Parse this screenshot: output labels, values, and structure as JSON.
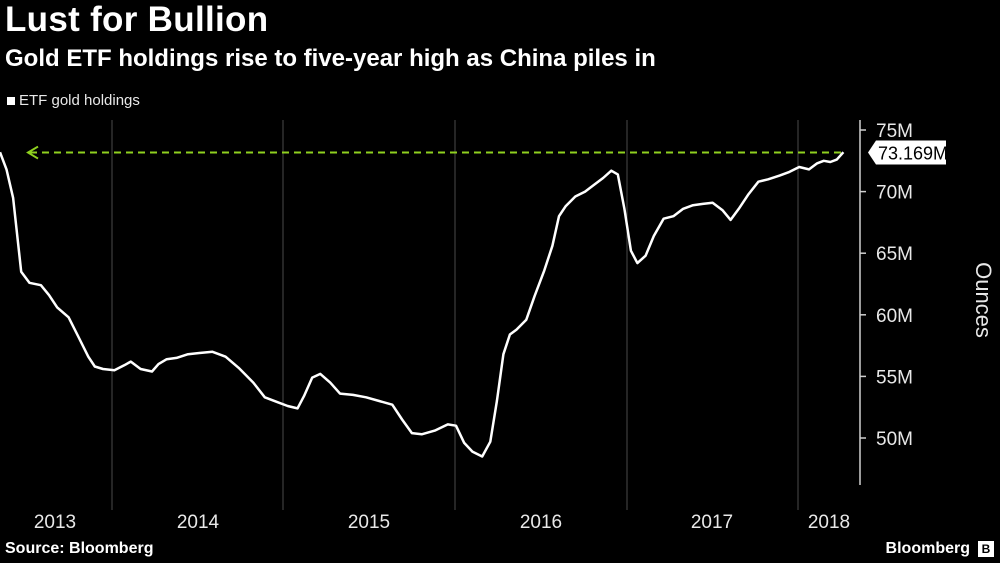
{
  "title": "Lust for Bullion",
  "subtitle": "Gold ETF holdings rise to five-year high as China piles in",
  "legend_label": "ETF gold holdings",
  "source": "Source: Bloomberg",
  "brand": "Bloomberg",
  "colors": {
    "background": "#000000",
    "line": "#ffffff",
    "target_line": "#8fd11f",
    "grid": "#4a4a4a"
  },
  "chart_data": {
    "type": "line",
    "title": "Lust for Bullion",
    "subtitle": "Gold ETF holdings rise to five-year high as China piles in",
    "ylabel": "Ounces",
    "ylim": [
      45.5,
      75
    ],
    "yticks": [
      50,
      55,
      60,
      65,
      70,
      75
    ],
    "ytick_labels": [
      "50M",
      "55M",
      "60M",
      "65M",
      "70M",
      "75M"
    ],
    "x_categories": [
      "2013",
      "2014",
      "2015",
      "2016",
      "2017",
      "2018"
    ],
    "xlim": [
      2013.0,
      2018.17
    ],
    "annotation": {
      "label": "73.169M",
      "value": 73.169
    },
    "series": [
      {
        "name": "ETF gold holdings",
        "points": [
          [
            2013.0,
            73.2
          ],
          [
            2013.04,
            71.8
          ],
          [
            2013.08,
            69.5
          ],
          [
            2013.13,
            63.5
          ],
          [
            2013.18,
            62.6
          ],
          [
            2013.25,
            62.4
          ],
          [
            2013.3,
            61.6
          ],
          [
            2013.35,
            60.6
          ],
          [
            2013.42,
            59.8
          ],
          [
            2013.48,
            58.2
          ],
          [
            2013.54,
            56.6
          ],
          [
            2013.58,
            55.8
          ],
          [
            2013.63,
            55.6
          ],
          [
            2013.7,
            55.5
          ],
          [
            2013.76,
            55.9
          ],
          [
            2013.8,
            56.2
          ],
          [
            2013.86,
            55.6
          ],
          [
            2013.93,
            55.4
          ],
          [
            2013.97,
            56.0
          ],
          [
            2014.02,
            56.4
          ],
          [
            2014.08,
            56.5
          ],
          [
            2014.15,
            56.8
          ],
          [
            2014.22,
            56.9
          ],
          [
            2014.3,
            57.0
          ],
          [
            2014.38,
            56.6
          ],
          [
            2014.46,
            55.7
          ],
          [
            2014.55,
            54.5
          ],
          [
            2014.62,
            53.3
          ],
          [
            2014.7,
            52.9
          ],
          [
            2014.76,
            52.6
          ],
          [
            2014.82,
            52.4
          ],
          [
            2014.86,
            53.4
          ],
          [
            2014.91,
            54.9
          ],
          [
            2014.96,
            55.2
          ],
          [
            2015.02,
            54.5
          ],
          [
            2015.08,
            53.6
          ],
          [
            2015.16,
            53.5
          ],
          [
            2015.24,
            53.3
          ],
          [
            2015.32,
            53.0
          ],
          [
            2015.4,
            52.7
          ],
          [
            2015.46,
            51.5
          ],
          [
            2015.52,
            50.4
          ],
          [
            2015.58,
            50.3
          ],
          [
            2015.66,
            50.6
          ],
          [
            2015.74,
            51.1
          ],
          [
            2015.79,
            51.0
          ],
          [
            2015.84,
            49.6
          ],
          [
            2015.89,
            48.9
          ],
          [
            2015.95,
            48.5
          ],
          [
            2016.0,
            49.7
          ],
          [
            2016.04,
            53.0
          ],
          [
            2016.08,
            56.8
          ],
          [
            2016.12,
            58.4
          ],
          [
            2016.16,
            58.8
          ],
          [
            2016.22,
            59.6
          ],
          [
            2016.27,
            61.5
          ],
          [
            2016.33,
            63.6
          ],
          [
            2016.38,
            65.6
          ],
          [
            2016.42,
            68.0
          ],
          [
            2016.46,
            68.8
          ],
          [
            2016.52,
            69.6
          ],
          [
            2016.58,
            70.0
          ],
          [
            2016.63,
            70.5
          ],
          [
            2016.69,
            71.1
          ],
          [
            2016.74,
            71.7
          ],
          [
            2016.78,
            71.4
          ],
          [
            2016.82,
            68.6
          ],
          [
            2016.86,
            65.2
          ],
          [
            2016.9,
            64.2
          ],
          [
            2016.95,
            64.8
          ],
          [
            2017.0,
            66.4
          ],
          [
            2017.06,
            67.8
          ],
          [
            2017.12,
            68.0
          ],
          [
            2017.18,
            68.6
          ],
          [
            2017.24,
            68.9
          ],
          [
            2017.3,
            69.0
          ],
          [
            2017.36,
            69.1
          ],
          [
            2017.42,
            68.5
          ],
          [
            2017.47,
            67.7
          ],
          [
            2017.52,
            68.6
          ],
          [
            2017.58,
            69.8
          ],
          [
            2017.64,
            70.8
          ],
          [
            2017.7,
            71.0
          ],
          [
            2017.77,
            71.3
          ],
          [
            2017.83,
            71.6
          ],
          [
            2017.89,
            72.0
          ],
          [
            2017.95,
            71.8
          ],
          [
            2018.0,
            72.3
          ],
          [
            2018.04,
            72.5
          ],
          [
            2018.08,
            72.4
          ],
          [
            2018.12,
            72.6
          ],
          [
            2018.16,
            73.2
          ]
        ]
      }
    ]
  }
}
